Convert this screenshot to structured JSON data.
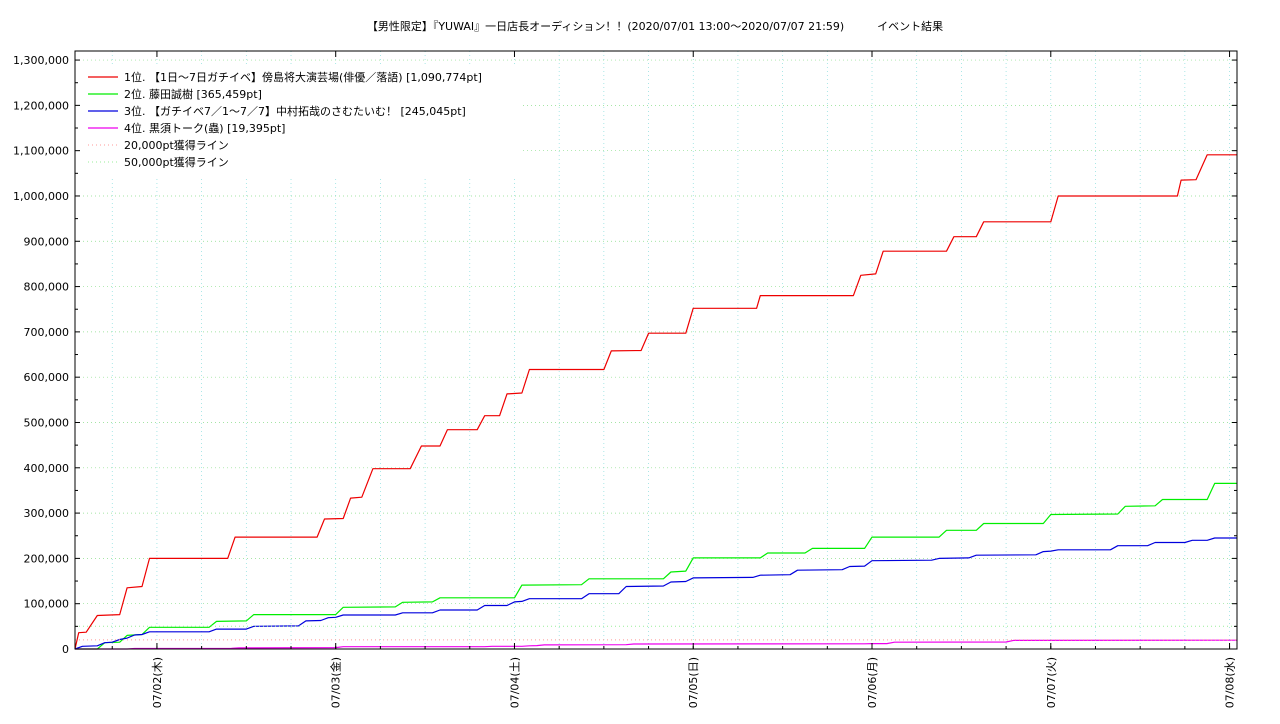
{
  "chart_data": {
    "type": "line",
    "title": "【男性限定】『YUWAI』一日店長オーディション！！(2020/07/01 13:00～2020/07/07 21:59)　　　イベント結果",
    "xlabel": "",
    "ylabel": "",
    "x_range": [
      "2020-07-01 13:00",
      "2020-07-08 01:00"
    ],
    "ylim": [
      0,
      1320000
    ],
    "y_ticks": [
      0,
      100000,
      200000,
      300000,
      400000,
      500000,
      600000,
      700000,
      800000,
      900000,
      1000000,
      1100000,
      1200000,
      1300000
    ],
    "y_tick_labels": [
      "0",
      "100,000",
      "200,000",
      "300,000",
      "400,000",
      "500,000",
      "600,000",
      "700,000",
      "800,000",
      "900,000",
      "1,000,000",
      "1,100,000",
      "1,200,000",
      "1,300,000"
    ],
    "x_ticks": [
      {
        "label": "07/02(木)",
        "x": "2020-07-02 00:00"
      },
      {
        "label": "07/03(金)",
        "x": "2020-07-03 00:00"
      },
      {
        "label": "07/04(土)",
        "x": "2020-07-04 00:00"
      },
      {
        "label": "07/05(日)",
        "x": "2020-07-05 00:00"
      },
      {
        "label": "07/06(月)",
        "x": "2020-07-06 00:00"
      },
      {
        "label": "07/07(火)",
        "x": "2020-07-07 00:00"
      },
      {
        "label": "07/08(水)",
        "x": "2020-07-08 00:00"
      }
    ],
    "grid": true,
    "legend_position": "top-left",
    "series": [
      {
        "name": "1位. 【1日～7日ガチイベ】傍島将大演芸場(俳優／落語) [1,090,774pt]",
        "color": "#ee0000",
        "step": true,
        "points": [
          [
            "2020-07-01 13:00",
            0
          ],
          [
            "2020-07-01 13:30",
            36000
          ],
          [
            "2020-07-01 14:30",
            37000
          ],
          [
            "2020-07-01 16:00",
            74000
          ],
          [
            "2020-07-01 19:00",
            76000
          ],
          [
            "2020-07-01 20:00",
            135000
          ],
          [
            "2020-07-01 22:00",
            138000
          ],
          [
            "2020-07-01 23:00",
            200000
          ],
          [
            "2020-07-02 09:30",
            200000
          ],
          [
            "2020-07-02 10:30",
            247000
          ],
          [
            "2020-07-02 21:30",
            247000
          ],
          [
            "2020-07-02 22:30",
            287000
          ],
          [
            "2020-07-03 01:00",
            288000
          ],
          [
            "2020-07-03 02:00",
            333000
          ],
          [
            "2020-07-03 03:30",
            335000
          ],
          [
            "2020-07-03 05:00",
            398000
          ],
          [
            "2020-07-03 10:00",
            398000
          ],
          [
            "2020-07-03 11:30",
            448000
          ],
          [
            "2020-07-03 14:00",
            448000
          ],
          [
            "2020-07-03 15:00",
            484000
          ],
          [
            "2020-07-03 19:00",
            484000
          ],
          [
            "2020-07-03 20:00",
            515000
          ],
          [
            "2020-07-03 22:00",
            515000
          ],
          [
            "2020-07-03 23:00",
            563000
          ],
          [
            "2020-07-04 01:00",
            565000
          ],
          [
            "2020-07-04 02:00",
            617000
          ],
          [
            "2020-07-04 12:00",
            617000
          ],
          [
            "2020-07-04 13:00",
            658000
          ],
          [
            "2020-07-04 17:00",
            659000
          ],
          [
            "2020-07-04 18:00",
            697000
          ],
          [
            "2020-07-04 23:00",
            697000
          ],
          [
            "2020-07-05 00:00",
            752000
          ],
          [
            "2020-07-05 08:30",
            752000
          ],
          [
            "2020-07-05 09:00",
            780000
          ],
          [
            "2020-07-05 21:30",
            780000
          ],
          [
            "2020-07-05 22:30",
            825000
          ],
          [
            "2020-07-06 00:30",
            828000
          ],
          [
            "2020-07-06 01:30",
            878000
          ],
          [
            "2020-07-06 10:00",
            878000
          ],
          [
            "2020-07-06 11:00",
            910000
          ],
          [
            "2020-07-06 14:00",
            910000
          ],
          [
            "2020-07-06 15:00",
            943000
          ],
          [
            "2020-07-07 00:00",
            943000
          ],
          [
            "2020-07-07 01:00",
            1000000
          ],
          [
            "2020-07-07 17:00",
            1000000
          ],
          [
            "2020-07-07 17:30",
            1035000
          ],
          [
            "2020-07-07 19:30",
            1036000
          ],
          [
            "2020-07-07 21:00",
            1090774
          ],
          [
            "2020-07-08 01:00",
            1090774
          ]
        ]
      },
      {
        "name": "2位. 藤田誠樹 [365,459pt]",
        "color": "#00ee00",
        "step": true,
        "points": [
          [
            "2020-07-01 13:00",
            0
          ],
          [
            "2020-07-01 16:00",
            0
          ],
          [
            "2020-07-01 17:00",
            14000
          ],
          [
            "2020-07-01 19:00",
            15000
          ],
          [
            "2020-07-01 20:00",
            30000
          ],
          [
            "2020-07-01 22:00",
            32000
          ],
          [
            "2020-07-01 23:00",
            48000
          ],
          [
            "2020-07-02 07:00",
            48000
          ],
          [
            "2020-07-02 08:00",
            61000
          ],
          [
            "2020-07-02 12:00",
            62000
          ],
          [
            "2020-07-02 13:00",
            76000
          ],
          [
            "2020-07-03 00:00",
            76000
          ],
          [
            "2020-07-03 01:00",
            92000
          ],
          [
            "2020-07-03 08:00",
            93000
          ],
          [
            "2020-07-03 09:00",
            103000
          ],
          [
            "2020-07-03 13:00",
            104000
          ],
          [
            "2020-07-03 14:00",
            113000
          ],
          [
            "2020-07-04 00:00",
            113000
          ],
          [
            "2020-07-04 01:00",
            141000
          ],
          [
            "2020-07-04 09:00",
            142000
          ],
          [
            "2020-07-04 10:00",
            155000
          ],
          [
            "2020-07-04 20:00",
            155000
          ],
          [
            "2020-07-04 21:00",
            170000
          ],
          [
            "2020-07-04 23:00",
            172000
          ],
          [
            "2020-07-05 00:00",
            201000
          ],
          [
            "2020-07-05 09:00",
            201000
          ],
          [
            "2020-07-05 10:00",
            212000
          ],
          [
            "2020-07-05 15:00",
            212000
          ],
          [
            "2020-07-05 16:00",
            222000
          ],
          [
            "2020-07-05 23:00",
            222000
          ],
          [
            "2020-07-06 00:00",
            247000
          ],
          [
            "2020-07-06 09:00",
            247000
          ],
          [
            "2020-07-06 10:00",
            262000
          ],
          [
            "2020-07-06 14:00",
            262000
          ],
          [
            "2020-07-06 15:00",
            277000
          ],
          [
            "2020-07-06 23:00",
            277000
          ],
          [
            "2020-07-07 00:00",
            297000
          ],
          [
            "2020-07-07 09:00",
            298000
          ],
          [
            "2020-07-07 10:00",
            315000
          ],
          [
            "2020-07-07 14:00",
            316000
          ],
          [
            "2020-07-07 15:00",
            330000
          ],
          [
            "2020-07-07 21:00",
            330000
          ],
          [
            "2020-07-07 22:00",
            365459
          ],
          [
            "2020-07-08 01:00",
            365459
          ]
        ]
      },
      {
        "name": "3位. 【ガチイベ7／1～7／7】中村拓哉のさむたいむ！ [245,045pt]",
        "color": "#0000dd",
        "step": true,
        "points": [
          [
            "2020-07-01 13:00",
            0
          ],
          [
            "2020-07-01 14:00",
            6000
          ],
          [
            "2020-07-01 16:00",
            7000
          ],
          [
            "2020-07-01 17:00",
            14000
          ],
          [
            "2020-07-01 18:00",
            15000
          ],
          [
            "2020-07-01 19:00",
            21000
          ],
          [
            "2020-07-01 20:00",
            24000
          ],
          [
            "2020-07-01 21:00",
            31000
          ],
          [
            "2020-07-01 22:00",
            32000
          ],
          [
            "2020-07-01 23:00",
            38000
          ],
          [
            "2020-07-02 07:00",
            38000
          ],
          [
            "2020-07-02 08:00",
            44000
          ],
          [
            "2020-07-02 12:00",
            44000
          ],
          [
            "2020-07-02 13:00",
            50000
          ],
          [
            "2020-07-02 19:00",
            51000
          ],
          [
            "2020-07-02 20:00",
            62000
          ],
          [
            "2020-07-02 22:00",
            63000
          ],
          [
            "2020-07-02 23:00",
            69000
          ],
          [
            "2020-07-03 00:00",
            70000
          ],
          [
            "2020-07-03 01:00",
            75000
          ],
          [
            "2020-07-03 08:00",
            75000
          ],
          [
            "2020-07-03 09:00",
            80000
          ],
          [
            "2020-07-03 13:00",
            80000
          ],
          [
            "2020-07-03 14:00",
            86000
          ],
          [
            "2020-07-03 19:00",
            86000
          ],
          [
            "2020-07-03 20:00",
            96000
          ],
          [
            "2020-07-03 23:00",
            96000
          ],
          [
            "2020-07-04 00:00",
            104000
          ],
          [
            "2020-07-04 01:00",
            105000
          ],
          [
            "2020-07-04 02:00",
            111000
          ],
          [
            "2020-07-04 09:00",
            111000
          ],
          [
            "2020-07-04 10:00",
            122000
          ],
          [
            "2020-07-04 14:00",
            122000
          ],
          [
            "2020-07-04 15:00",
            138000
          ],
          [
            "2020-07-04 20:00",
            139000
          ],
          [
            "2020-07-04 21:00",
            148000
          ],
          [
            "2020-07-04 23:00",
            149000
          ],
          [
            "2020-07-05 00:00",
            157000
          ],
          [
            "2020-07-05 08:00",
            158000
          ],
          [
            "2020-07-05 09:00",
            163000
          ],
          [
            "2020-07-05 13:00",
            164000
          ],
          [
            "2020-07-05 14:00",
            174000
          ],
          [
            "2020-07-05 20:00",
            175000
          ],
          [
            "2020-07-05 21:00",
            182000
          ],
          [
            "2020-07-05 23:00",
            183000
          ],
          [
            "2020-07-06 00:00",
            195000
          ],
          [
            "2020-07-06 08:00",
            196000
          ],
          [
            "2020-07-06 09:00",
            200000
          ],
          [
            "2020-07-06 13:00",
            201000
          ],
          [
            "2020-07-06 14:00",
            207000
          ],
          [
            "2020-07-06 22:00",
            208000
          ],
          [
            "2020-07-06 23:00",
            215000
          ],
          [
            "2020-07-07 00:00",
            216000
          ],
          [
            "2020-07-07 01:00",
            219000
          ],
          [
            "2020-07-07 08:00",
            219000
          ],
          [
            "2020-07-07 09:00",
            228000
          ],
          [
            "2020-07-07 13:00",
            228000
          ],
          [
            "2020-07-07 14:00",
            235000
          ],
          [
            "2020-07-07 18:00",
            235000
          ],
          [
            "2020-07-07 19:00",
            240000
          ],
          [
            "2020-07-07 21:00",
            240000
          ],
          [
            "2020-07-07 22:00",
            245045
          ],
          [
            "2020-07-08 01:00",
            245045
          ]
        ]
      },
      {
        "name": "4位. 黒須トーク(蟲) [19,395pt]",
        "color": "#ee00ee",
        "step": true,
        "points": [
          [
            "2020-07-01 13:00",
            0
          ],
          [
            "2020-07-01 20:00",
            0
          ],
          [
            "2020-07-01 21:00",
            1000
          ],
          [
            "2020-07-02 10:00",
            1500
          ],
          [
            "2020-07-02 11:00",
            2500
          ],
          [
            "2020-07-03 00:00",
            3000
          ],
          [
            "2020-07-03 01:00",
            5000
          ],
          [
            "2020-07-03 20:00",
            5000
          ],
          [
            "2020-07-03 21:00",
            6000
          ],
          [
            "2020-07-04 01:00",
            6000
          ],
          [
            "2020-07-04 02:00",
            7000
          ],
          [
            "2020-07-04 03:00",
            7500
          ],
          [
            "2020-07-04 04:00",
            9000
          ],
          [
            "2020-07-04 15:00",
            9500
          ],
          [
            "2020-07-04 16:00",
            11000
          ],
          [
            "2020-07-05 23:00",
            11500
          ],
          [
            "2020-07-06 00:00",
            12000
          ],
          [
            "2020-07-06 02:00",
            12000
          ],
          [
            "2020-07-06 03:00",
            15000
          ],
          [
            "2020-07-06 18:00",
            15500
          ],
          [
            "2020-07-06 19:00",
            19000
          ],
          [
            "2020-07-08 01:00",
            19395
          ]
        ]
      },
      {
        "name": "20,000pt獲得ライン",
        "color": "#ff9999",
        "dotted": true,
        "points": [
          [
            "2020-07-01 13:00",
            20000
          ],
          [
            "2020-07-08 01:00",
            20000
          ]
        ]
      },
      {
        "name": "50,000pt獲得ライン",
        "color": "#99ee99",
        "dotted": true,
        "points": [
          [
            "2020-07-01 13:00",
            50000
          ],
          [
            "2020-07-08 01:00",
            50000
          ]
        ]
      }
    ]
  }
}
